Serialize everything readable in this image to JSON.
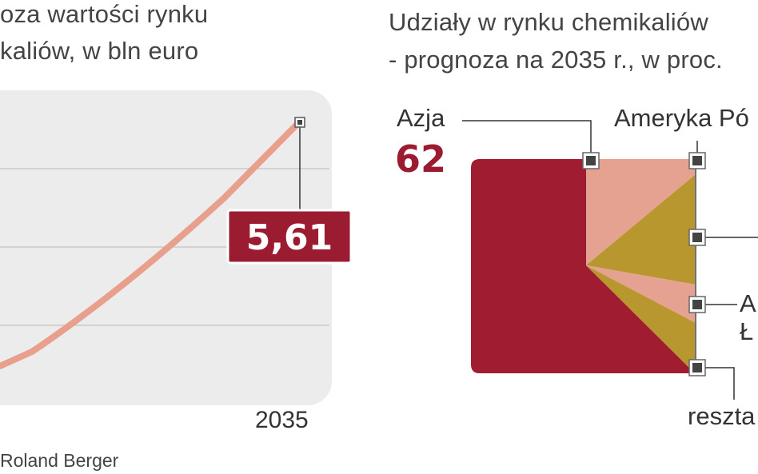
{
  "left_chart": {
    "title_line1": "oza wartości rynku",
    "title_line2": "kaliów, w bln euro",
    "source": "Roland Berger",
    "callout_value": "5,61",
    "x_tick_visible": "2035"
  },
  "right_chart": {
    "title_line1": "Udziały w rynku chemikaliów",
    "title_line2": "- prognoza na 2035 r., w proc.",
    "label_asia": "Azja",
    "value_asia": "62",
    "label_north_america": "Ameryka Pó",
    "label_latin_america_1": "A",
    "label_latin_america_2": "Ł",
    "label_rest": "reszta"
  },
  "colors": {
    "line": "#e8a08c",
    "callout_bg": "#9b1b30",
    "asia": "#a01c30",
    "salmon": "#e6a290",
    "gold": "#b8972e",
    "panel": "#ececec",
    "grid": "#c9c9c9",
    "marker": "#444444"
  },
  "chart_data": [
    {
      "type": "line",
      "title": "oza wartości rynku kaliów, w bln euro",
      "x": [
        "",
        "2035"
      ],
      "series": [
        {
          "values": [
            null,
            5.61
          ]
        }
      ]
    },
    {
      "type": "pie",
      "title": "Udziały w rynku chemikaliów - prognoza na 2035 r., w proc.",
      "categories": [
        "Azja",
        "Ameryka Pó",
        "",
        "A Ł",
        "reszta"
      ],
      "values": [
        62,
        11,
        14,
        4,
        9
      ]
    }
  ]
}
